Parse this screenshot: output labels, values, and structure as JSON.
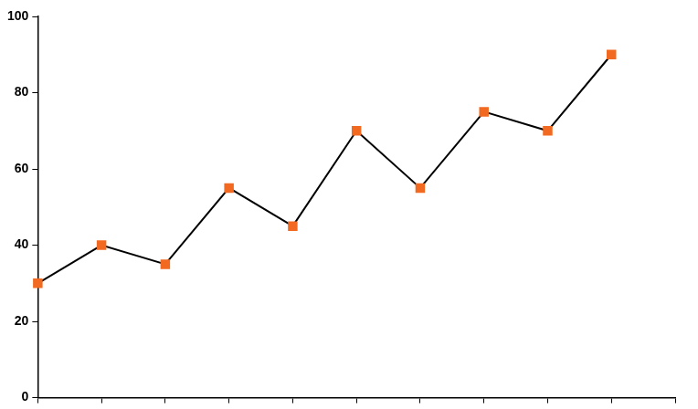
{
  "chart_data": {
    "type": "line",
    "categories": [
      null,
      null,
      null,
      null,
      null,
      null,
      null,
      null,
      null,
      null,
      null
    ],
    "series": [
      {
        "name": null,
        "color": "#000000",
        "marker_color": "#f26a21",
        "values": [
          30,
          40,
          35,
          55,
          45,
          70,
          55,
          75,
          70,
          90,
          null
        ]
      }
    ],
    "marker": "square",
    "line_style": "solid",
    "ylim": [
      0,
      100
    ],
    "yticks": [
      0,
      20,
      40,
      60,
      80,
      100
    ],
    "grid": false,
    "tick_labels": "y"
  }
}
